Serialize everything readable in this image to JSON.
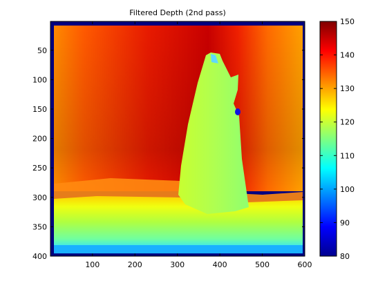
{
  "chart_data": {
    "type": "heatmap",
    "title": "Filtered Depth (2nd pass)",
    "xlabel": "",
    "ylabel": "",
    "x_ticks": [
      "100",
      "200",
      "300",
      "400",
      "500",
      "600"
    ],
    "y_ticks": [
      "50",
      "100",
      "150",
      "200",
      "250",
      "300",
      "350",
      "400"
    ],
    "xlim": [
      1,
      600
    ],
    "ylim": [
      1,
      400
    ],
    "y_axis_direction": "down",
    "colormap": "jet",
    "colorbar": {
      "range": [
        80,
        150
      ],
      "ticks": [
        "80",
        "90",
        "100",
        "110",
        "120",
        "130",
        "140",
        "150"
      ]
    },
    "regions": [
      {
        "name": "background wall",
        "depth_left": 136,
        "depth_center": 145,
        "depth_right": 128
      },
      {
        "name": "object",
        "depth": 119
      },
      {
        "name": "floor near",
        "depth": 116
      },
      {
        "name": "floor far edge",
        "depth": 108
      },
      {
        "name": "hole",
        "depth": 82
      }
    ]
  },
  "colors": {
    "frame": "#000000",
    "background": "#ffffff",
    "image_border": "#00007f"
  }
}
